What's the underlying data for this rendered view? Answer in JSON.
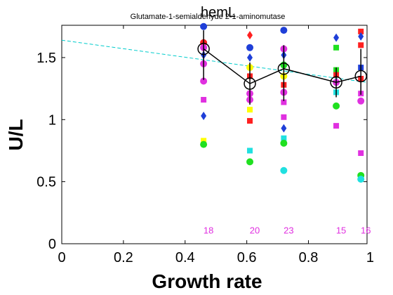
{
  "chart_data": {
    "type": "scatter",
    "title": "hemL",
    "subtitle": "Glutamate-1-semialdehyde 2-1-aminomutase",
    "xlabel": "Growth rate",
    "ylabel": "U/L",
    "xlim": [
      0,
      0.99
    ],
    "ylim": [
      0,
      1.76
    ],
    "xticks": [
      "0",
      "0.2",
      "0.4",
      "0.6",
      "0.8",
      "1"
    ],
    "yticks": [
      "0",
      "0.5",
      "1",
      "1.5"
    ],
    "grid": false,
    "legend": "none",
    "groups": [
      {
        "x": 0.46,
        "mean": 1.57,
        "err_low": 1.32,
        "err_high": 1.72,
        "count": "18",
        "points": [
          {
            "y": 1.75,
            "color": "#1f3fd8",
            "marker": "circle"
          },
          {
            "y": 1.62,
            "color": "#ff2020",
            "marker": "circle"
          },
          {
            "y": 1.58,
            "color": "#e030e0",
            "marker": "circle"
          },
          {
            "y": 1.52,
            "color": "#1f3fd8",
            "marker": "diamond"
          },
          {
            "y": 1.45,
            "color": "#e030e0",
            "marker": "circle"
          },
          {
            "y": 1.31,
            "color": "#e030e0",
            "marker": "circle"
          },
          {
            "y": 1.16,
            "color": "#e030e0",
            "marker": "square"
          },
          {
            "y": 1.03,
            "color": "#1f3fd8",
            "marker": "diamond"
          },
          {
            "y": 0.83,
            "color": "#ffff00",
            "marker": "square"
          },
          {
            "y": 0.8,
            "color": "#20e020",
            "marker": "circle"
          }
        ]
      },
      {
        "x": 0.61,
        "mean": 1.29,
        "err_low": 1.12,
        "err_high": 1.46,
        "count": "20",
        "points": [
          {
            "y": 1.68,
            "color": "#ff2020",
            "marker": "diamond"
          },
          {
            "y": 1.58,
            "color": "#1f3fd8",
            "marker": "circle"
          },
          {
            "y": 1.5,
            "color": "#1f3fd8",
            "marker": "diamond"
          },
          {
            "y": 1.42,
            "color": "#ffff00",
            "marker": "circle"
          },
          {
            "y": 1.35,
            "color": "#ff2020",
            "marker": "square"
          },
          {
            "y": 1.21,
            "color": "#e030e0",
            "marker": "circle"
          },
          {
            "y": 1.16,
            "color": "#e030e0",
            "marker": "circle"
          },
          {
            "y": 1.08,
            "color": "#ffff00",
            "marker": "square"
          },
          {
            "y": 0.99,
            "color": "#ff2020",
            "marker": "square"
          },
          {
            "y": 0.75,
            "color": "#20e0e0",
            "marker": "square"
          },
          {
            "y": 0.66,
            "color": "#20e020",
            "marker": "circle"
          }
        ]
      },
      {
        "x": 0.72,
        "mean": 1.41,
        "err_low": 1.15,
        "err_high": 1.6,
        "count": "23",
        "points": [
          {
            "y": 1.72,
            "color": "#1f3fd8",
            "marker": "circle"
          },
          {
            "y": 1.57,
            "color": "#e030e0",
            "marker": "circle"
          },
          {
            "y": 1.52,
            "color": "#1f3fd8",
            "marker": "diamond"
          },
          {
            "y": 1.44,
            "color": "#20e020",
            "marker": "circle"
          },
          {
            "y": 1.35,
            "color": "#ffff00",
            "marker": "circle"
          },
          {
            "y": 1.28,
            "color": "#ff2020",
            "marker": "square"
          },
          {
            "y": 1.22,
            "color": "#e030e0",
            "marker": "circle"
          },
          {
            "y": 1.14,
            "color": "#e030e0",
            "marker": "square"
          },
          {
            "y": 1.02,
            "color": "#e030e0",
            "marker": "square"
          },
          {
            "y": 0.93,
            "color": "#1f3fd8",
            "marker": "diamond"
          },
          {
            "y": 0.85,
            "color": "#20e0e0",
            "marker": "square"
          },
          {
            "y": 0.81,
            "color": "#20e020",
            "marker": "circle"
          },
          {
            "y": 0.59,
            "color": "#20e0e0",
            "marker": "circle"
          }
        ]
      },
      {
        "x": 0.89,
        "mean": 1.3,
        "err_low": 1.18,
        "err_high": 1.42,
        "count": "15",
        "points": [
          {
            "y": 1.66,
            "color": "#1f3fd8",
            "marker": "diamond"
          },
          {
            "y": 1.58,
            "color": "#20e020",
            "marker": "square"
          },
          {
            "y": 1.4,
            "color": "#20e020",
            "marker": "square"
          },
          {
            "y": 1.36,
            "color": "#ff2020",
            "marker": "square"
          },
          {
            "y": 1.3,
            "color": "#e030e0",
            "marker": "circle"
          },
          {
            "y": 1.22,
            "color": "#20e0e0",
            "marker": "square"
          },
          {
            "y": 1.11,
            "color": "#20e020",
            "marker": "circle"
          },
          {
            "y": 0.95,
            "color": "#e030e0",
            "marker": "square"
          }
        ]
      },
      {
        "x": 0.97,
        "mean": 1.35,
        "err_low": 1.2,
        "err_high": 1.57,
        "count": "16",
        "points": [
          {
            "y": 1.71,
            "color": "#ff2020",
            "marker": "square"
          },
          {
            "y": 1.67,
            "color": "#1f3fd8",
            "marker": "diamond"
          },
          {
            "y": 1.6,
            "color": "#ff2020",
            "marker": "square"
          },
          {
            "y": 1.42,
            "color": "#1f3fd8",
            "marker": "square"
          },
          {
            "y": 1.33,
            "color": "#ff2020",
            "marker": "square"
          },
          {
            "y": 1.21,
            "color": "#e030e0",
            "marker": "square"
          },
          {
            "y": 1.15,
            "color": "#e030e0",
            "marker": "circle"
          },
          {
            "y": 0.73,
            "color": "#e030e0",
            "marker": "square"
          },
          {
            "y": 0.55,
            "color": "#20e020",
            "marker": "circle"
          },
          {
            "y": 0.52,
            "color": "#20e0e0",
            "marker": "circle"
          }
        ]
      }
    ],
    "fit_line": {
      "x": [
        0,
        0.99
      ],
      "y": [
        1.64,
        1.3
      ],
      "color": "#00cccc",
      "style": "dashed"
    },
    "mean_line_color": "#000000",
    "count_label_color": "#e030e0",
    "count_label_y": 0.11
  }
}
